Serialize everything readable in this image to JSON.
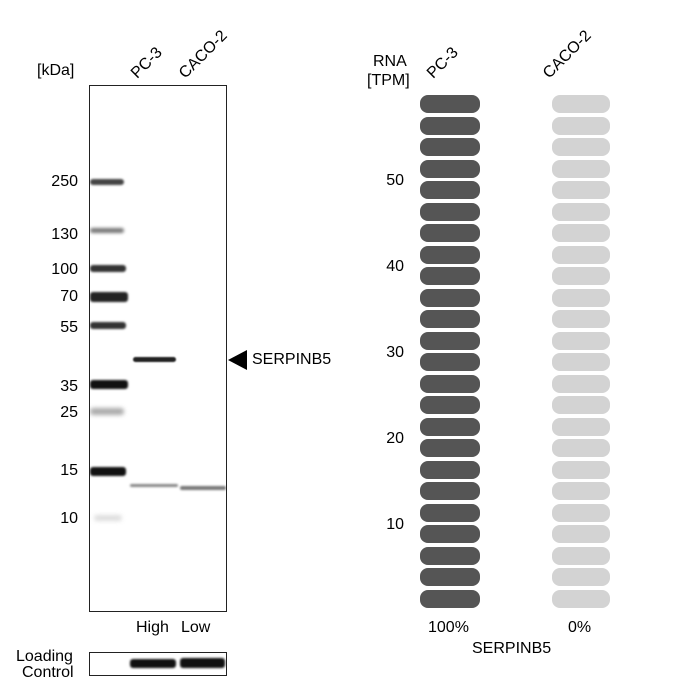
{
  "western_blot": {
    "unit_label": "[kDa]",
    "lanes": [
      "PC-3",
      "CACO-2"
    ],
    "markers": [
      "250",
      "130",
      "100",
      "70",
      "55",
      "35",
      "25",
      "15",
      "10"
    ],
    "target_label": "SERPINB5",
    "lane_levels": [
      "High",
      "Low"
    ],
    "loading_control_line1": "Loading",
    "loading_control_line2": "Control"
  },
  "chart_data": {
    "type": "bar",
    "title": "",
    "xlabel": "SERPINB5",
    "ylabel_line1": "RNA",
    "ylabel_line2": "[TPM]",
    "y_ticks": [
      "10",
      "20",
      "30",
      "40",
      "50"
    ],
    "categories": [
      "PC-3",
      "CACO-2"
    ],
    "values_percent": [
      100,
      0
    ],
    "value_labels": [
      "100%",
      "0%"
    ],
    "colors": {
      "high": "#555555",
      "low": "#d3d3d3"
    }
  }
}
